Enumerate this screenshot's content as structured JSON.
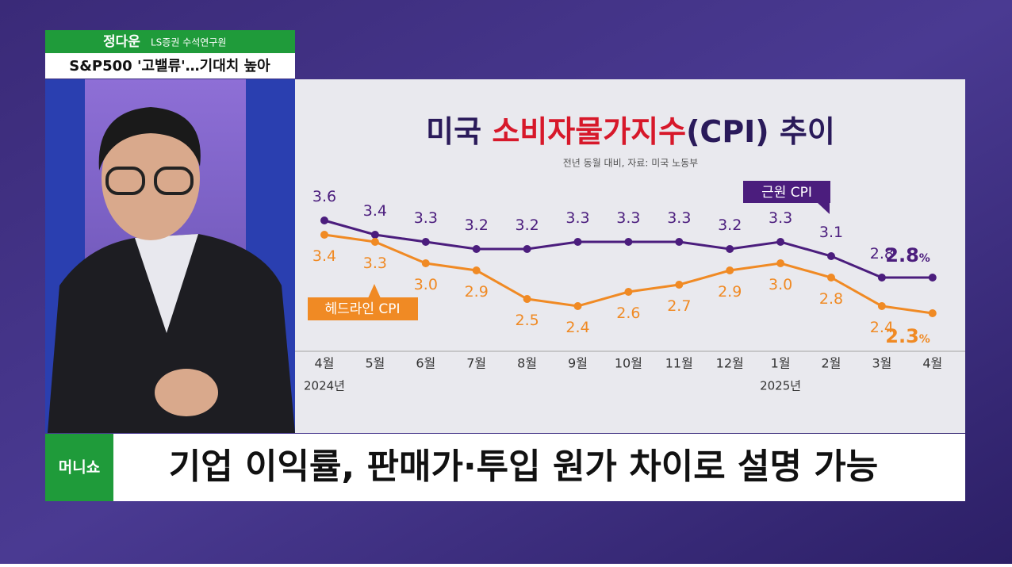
{
  "caption": {
    "name": "정다운",
    "role": "LS증권 수석연구원",
    "topic": "S&P500 '고밸류'…기대치 높아"
  },
  "chart_data": {
    "type": "line",
    "title_parts": [
      "미국 ",
      "소비자물가지수",
      "(CPI) 추이"
    ],
    "title_highlight_color": "#d7182a",
    "subtitle": "전년 동월 대비, 자료: 미국 노동부",
    "categories": [
      "4월",
      "5월",
      "6월",
      "7월",
      "8월",
      "9월",
      "10월",
      "11월",
      "12월",
      "1월",
      "2월",
      "3월",
      "4월"
    ],
    "years": [
      "2024년",
      null,
      null,
      null,
      null,
      null,
      null,
      null,
      null,
      "2025년",
      null,
      null,
      null
    ],
    "ylim": [
      1.8,
      4.3
    ],
    "series": [
      {
        "name": "근원 CPI",
        "color": "#4b1d7d",
        "values": [
          3.6,
          3.4,
          3.3,
          3.2,
          3.2,
          3.3,
          3.3,
          3.3,
          3.2,
          3.3,
          3.1,
          2.8,
          2.8
        ],
        "value_labels": [
          "3.6",
          "3.4",
          "3.3",
          "3.2",
          "3.2",
          "3.3",
          "3.3",
          "3.3",
          "3.2",
          "3.3",
          "3.1",
          "2.8",
          "2.8"
        ],
        "unit_label": "%"
      },
      {
        "name": "헤드라인 CPI",
        "color": "#f08a24",
        "values": [
          3.4,
          3.3,
          3.0,
          2.9,
          2.5,
          2.4,
          2.6,
          2.7,
          2.9,
          3.0,
          2.8,
          2.4,
          2.3
        ],
        "value_labels": [
          "3.4",
          "3.3",
          "3.0",
          "2.9",
          "2.5",
          "2.4",
          "2.6",
          "2.7",
          "2.9",
          "3.0",
          "2.8",
          "2.4",
          "2.3"
        ],
        "unit_label": "%"
      }
    ]
  },
  "ticker": {
    "logo": "머니쇼",
    "headline": "기업 이익률, 판매가·투입 원가 차이로 설명 가능"
  }
}
